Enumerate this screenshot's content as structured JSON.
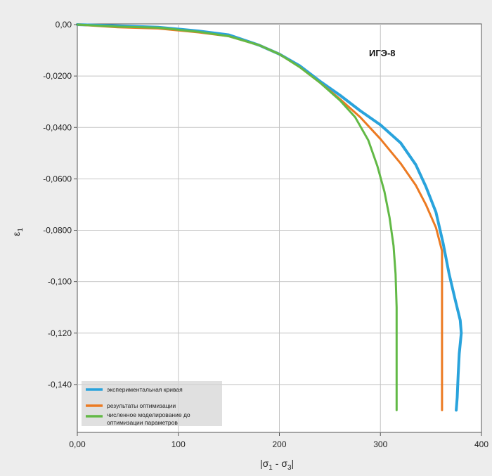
{
  "chart_data": {
    "type": "line",
    "xlabel_parts": [
      "|σ",
      "1",
      " - σ",
      "3",
      "|"
    ],
    "ylabel_parts": [
      "ε",
      "1"
    ],
    "xlim": [
      0,
      400
    ],
    "ylim": [
      -0.16,
      0
    ],
    "x_ticks": [
      0,
      100,
      200,
      300,
      400
    ],
    "x_tick_labels": [
      "0,00",
      "100",
      "200",
      "300",
      "400"
    ],
    "y_ticks": [
      0,
      -0.02,
      -0.04,
      -0.06,
      -0.08,
      -0.1,
      -0.12,
      -0.14
    ],
    "y_tick_labels": [
      "0,00",
      "-0,0200",
      "-0,0400",
      "-0,0600",
      "-0,0800",
      "-0,100",
      "-0,120",
      "-0,140"
    ],
    "grid": true,
    "annotation": "ИГЭ-8",
    "legend_position": "bottom-left",
    "series": [
      {
        "name": "экспериментальная кривая",
        "color": "#29a3dc",
        "points": [
          [
            0,
            0
          ],
          [
            40,
            -0.0005
          ],
          [
            80,
            -0.001
          ],
          [
            120,
            -0.0025
          ],
          [
            150,
            -0.004
          ],
          [
            180,
            -0.008
          ],
          [
            200,
            -0.0115
          ],
          [
            220,
            -0.016
          ],
          [
            240,
            -0.022
          ],
          [
            260,
            -0.0275
          ],
          [
            280,
            -0.0335
          ],
          [
            300,
            -0.039
          ],
          [
            320,
            -0.046
          ],
          [
            335,
            -0.0545
          ],
          [
            345,
            -0.063
          ],
          [
            355,
            -0.073
          ],
          [
            362,
            -0.085
          ],
          [
            368,
            -0.097
          ],
          [
            374,
            -0.107
          ],
          [
            379,
            -0.115
          ],
          [
            380,
            -0.12
          ],
          [
            378,
            -0.128
          ],
          [
            377,
            -0.136
          ],
          [
            376,
            -0.145
          ],
          [
            375,
            -0.15
          ]
        ]
      },
      {
        "name": "результаты оптимизации",
        "color": "#ec7a22",
        "points": [
          [
            0,
            0
          ],
          [
            40,
            -0.001
          ],
          [
            80,
            -0.0015
          ],
          [
            120,
            -0.003
          ],
          [
            150,
            -0.0045
          ],
          [
            180,
            -0.008
          ],
          [
            200,
            -0.0115
          ],
          [
            220,
            -0.0165
          ],
          [
            240,
            -0.0225
          ],
          [
            260,
            -0.029
          ],
          [
            280,
            -0.036
          ],
          [
            300,
            -0.0445
          ],
          [
            320,
            -0.054
          ],
          [
            335,
            -0.0625
          ],
          [
            345,
            -0.07
          ],
          [
            355,
            -0.079
          ],
          [
            361,
            -0.088
          ],
          [
            361,
            -0.15
          ]
        ]
      },
      {
        "name": "численное моделирование до оптимизации параметров",
        "name_lines": [
          "численное моделирование до",
          "оптимизации параметров"
        ],
        "color": "#62b946",
        "points": [
          [
            0,
            0
          ],
          [
            40,
            -0.0008
          ],
          [
            80,
            -0.0012
          ],
          [
            120,
            -0.0028
          ],
          [
            150,
            -0.0045
          ],
          [
            180,
            -0.008
          ],
          [
            200,
            -0.0115
          ],
          [
            220,
            -0.0165
          ],
          [
            240,
            -0.0225
          ],
          [
            260,
            -0.0295
          ],
          [
            275,
            -0.036
          ],
          [
            288,
            -0.045
          ],
          [
            297,
            -0.055
          ],
          [
            304,
            -0.065
          ],
          [
            309,
            -0.075
          ],
          [
            313,
            -0.086
          ],
          [
            315,
            -0.097
          ],
          [
            316,
            -0.11
          ],
          [
            316,
            -0.15
          ]
        ]
      }
    ]
  }
}
